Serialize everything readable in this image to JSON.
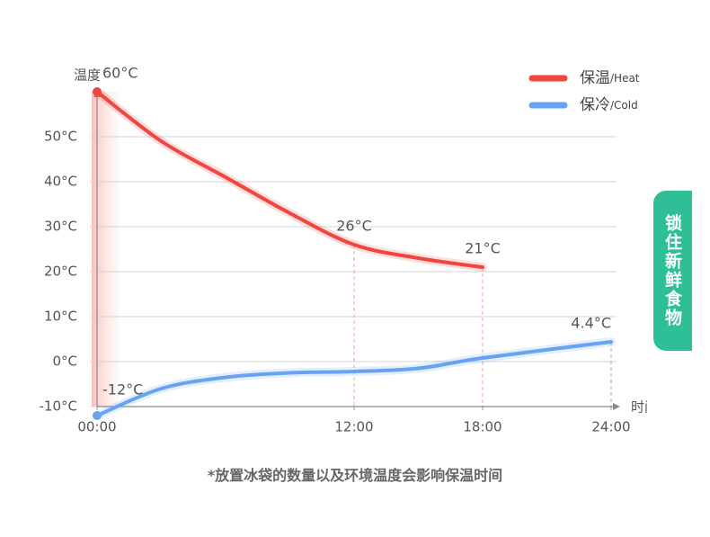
{
  "chart_data": {
    "type": "line",
    "y_label": "温度",
    "x_label": "时间",
    "xlim": [
      0,
      24
    ],
    "xticks": [
      {
        "value": 0,
        "label": "00:00"
      },
      {
        "value": 12,
        "label": "12:00"
      },
      {
        "value": 18,
        "label": "18:00"
      },
      {
        "value": 24,
        "label": "24:00"
      }
    ],
    "ylim": [
      -10,
      60
    ],
    "yticks": [
      {
        "value": -10,
        "label": "-10°C"
      },
      {
        "value": 0,
        "label": "0°C"
      },
      {
        "value": 10,
        "label": "10°C"
      },
      {
        "value": 20,
        "label": "20°C"
      },
      {
        "value": 30,
        "label": "30°C"
      },
      {
        "value": 40,
        "label": "40°C"
      },
      {
        "value": 50,
        "label": "50°C"
      }
    ],
    "grid": true,
    "legend": "top-right",
    "series": [
      {
        "name": "保温/Heat",
        "color": "#f0463f",
        "x": [
          0,
          3,
          6,
          9,
          12,
          15,
          18
        ],
        "values": [
          60,
          49,
          41,
          33,
          26,
          23,
          21
        ],
        "value_labels": [
          "60°C",
          null,
          null,
          null,
          "26°C",
          null,
          "21°C"
        ]
      },
      {
        "name": "保冷/Cold",
        "color": "#68a3f2",
        "x": [
          0,
          3,
          6,
          9,
          12,
          15,
          18,
          24
        ],
        "values": [
          -12,
          -6,
          -3.5,
          -2.5,
          -2.2,
          -1.5,
          0.8,
          4.4
        ],
        "value_labels": [
          "-12°C",
          null,
          null,
          null,
          null,
          null,
          null,
          "4.4°C"
        ]
      }
    ]
  },
  "badge": "锁住新鲜食物",
  "footnote": "*放置冰袋的数量以及环境温度会影响保温时间"
}
